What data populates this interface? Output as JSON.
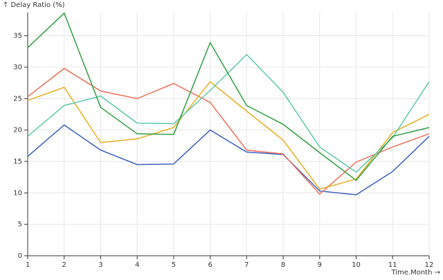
{
  "chart_data": {
    "type": "line",
    "y_label": "↑ Delay Ratio (%)",
    "x_label": "Time.Month →",
    "x": [
      1,
      2,
      3,
      4,
      5,
      6,
      7,
      8,
      9,
      10,
      11,
      12
    ],
    "xlim": [
      1,
      12
    ],
    "xticks": [
      1,
      2,
      3,
      4,
      5,
      6,
      7,
      8,
      9,
      10,
      11,
      12
    ],
    "ylim": [
      0,
      38.7
    ],
    "yticks": [
      0,
      5,
      10,
      15,
      20,
      25,
      30,
      35
    ],
    "grid": true,
    "series": [
      {
        "color": "#3b5fc0",
        "values": [
          15.8,
          20.8,
          16.8,
          14.5,
          14.6,
          20,
          16.5,
          16.1,
          10.3,
          9.7,
          13.4,
          19
        ]
      },
      {
        "color": "#ea6f5a",
        "values": [
          25.3,
          29.8,
          26.2,
          25,
          27.4,
          24.4,
          16.8,
          16.2,
          9.8,
          14.9,
          17.3,
          19.4
        ]
      },
      {
        "color": "#e8ad1e",
        "values": [
          24.7,
          26.8,
          18,
          18.6,
          20.4,
          27.7,
          23,
          18.4,
          10.6,
          12.2,
          19.6,
          22.5
        ]
      },
      {
        "color": "#5cc9aa",
        "values": [
          19,
          23.9,
          25.4,
          21.1,
          21,
          26.3,
          32,
          26,
          17.3,
          13.3,
          18.8,
          27.7
        ]
      },
      {
        "color": "#2e9e3e",
        "values": [
          33.1,
          38.6,
          23.6,
          19.4,
          19.3,
          33.9,
          23.9,
          20.9,
          16.4,
          12,
          19,
          20.4
        ]
      }
    ]
  }
}
